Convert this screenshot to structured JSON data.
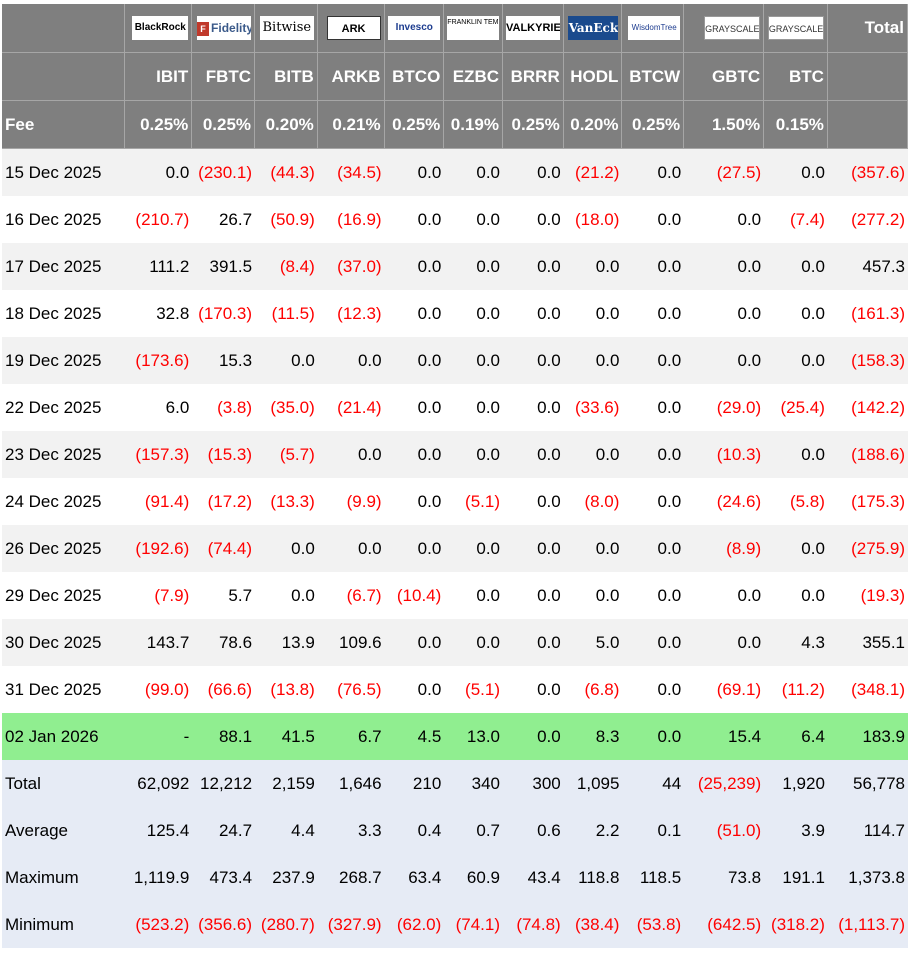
{
  "header": {
    "total_label": "Total",
    "ticker_label": "",
    "fee_label": "Fee",
    "funds": [
      {
        "logo_text": "BlackRock",
        "logo_icon": "blackrock-logo",
        "ticker": "IBIT",
        "fee": "0.25%"
      },
      {
        "logo_text": "Fidelity",
        "logo_icon": "fidelity-logo",
        "ticker": "FBTC",
        "fee": "0.25%"
      },
      {
        "logo_text": "Bitwise",
        "logo_icon": "bitwise-logo",
        "ticker": "BITB",
        "fee": "0.20%"
      },
      {
        "logo_text": "ARK",
        "logo_icon": "ark-invest-logo",
        "ticker": "ARKB",
        "fee": "0.21%"
      },
      {
        "logo_text": "Invesco",
        "logo_icon": "invesco-logo",
        "ticker": "BTCO",
        "fee": "0.25%"
      },
      {
        "logo_text": "FRANKLIN TEMPLETON",
        "logo_icon": "franklin-templeton-logo",
        "ticker": "EZBC",
        "fee": "0.19%"
      },
      {
        "logo_text": "VALKYRIE",
        "logo_icon": "valkyrie-logo",
        "ticker": "BRRR",
        "fee": "0.25%"
      },
      {
        "logo_text": "VanEck",
        "logo_icon": "vaneck-logo",
        "ticker": "HODL",
        "fee": "0.20%"
      },
      {
        "logo_text": "WisdomTree",
        "logo_icon": "wisdomtree-logo",
        "ticker": "BTCW",
        "fee": "0.25%"
      },
      {
        "logo_text": "GRAYSCALE",
        "logo_icon": "grayscale-logo",
        "ticker": "GBTC",
        "fee": "1.50%"
      },
      {
        "logo_text": "GRAYSCALE",
        "logo_icon": "grayscale-logo",
        "ticker": "BTC",
        "fee": "0.15%"
      }
    ]
  },
  "rows": [
    {
      "date": "15 Dec 2025",
      "values": [
        "0.0",
        "(230.1)",
        "(44.3)",
        "(34.5)",
        "0.0",
        "0.0",
        "0.0",
        "(21.2)",
        "0.0",
        "(27.5)",
        "0.0",
        "(357.6)"
      ]
    },
    {
      "date": "16 Dec 2025",
      "values": [
        "(210.7)",
        "26.7",
        "(50.9)",
        "(16.9)",
        "0.0",
        "0.0",
        "0.0",
        "(18.0)",
        "0.0",
        "0.0",
        "(7.4)",
        "(277.2)"
      ]
    },
    {
      "date": "17 Dec 2025",
      "values": [
        "111.2",
        "391.5",
        "(8.4)",
        "(37.0)",
        "0.0",
        "0.0",
        "0.0",
        "0.0",
        "0.0",
        "0.0",
        "0.0",
        "457.3"
      ]
    },
    {
      "date": "18 Dec 2025",
      "values": [
        "32.8",
        "(170.3)",
        "(11.5)",
        "(12.3)",
        "0.0",
        "0.0",
        "0.0",
        "0.0",
        "0.0",
        "0.0",
        "0.0",
        "(161.3)"
      ]
    },
    {
      "date": "19 Dec 2025",
      "values": [
        "(173.6)",
        "15.3",
        "0.0",
        "0.0",
        "0.0",
        "0.0",
        "0.0",
        "0.0",
        "0.0",
        "0.0",
        "0.0",
        "(158.3)"
      ]
    },
    {
      "date": "22 Dec 2025",
      "values": [
        "6.0",
        "(3.8)",
        "(35.0)",
        "(21.4)",
        "0.0",
        "0.0",
        "0.0",
        "(33.6)",
        "0.0",
        "(29.0)",
        "(25.4)",
        "(142.2)"
      ]
    },
    {
      "date": "23 Dec 2025",
      "values": [
        "(157.3)",
        "(15.3)",
        "(5.7)",
        "0.0",
        "0.0",
        "0.0",
        "0.0",
        "0.0",
        "0.0",
        "(10.3)",
        "0.0",
        "(188.6)"
      ]
    },
    {
      "date": "24 Dec 2025",
      "values": [
        "(91.4)",
        "(17.2)",
        "(13.3)",
        "(9.9)",
        "0.0",
        "(5.1)",
        "0.0",
        "(8.0)",
        "0.0",
        "(24.6)",
        "(5.8)",
        "(175.3)"
      ]
    },
    {
      "date": "26 Dec 2025",
      "values": [
        "(192.6)",
        "(74.4)",
        "0.0",
        "0.0",
        "0.0",
        "0.0",
        "0.0",
        "0.0",
        "0.0",
        "(8.9)",
        "0.0",
        "(275.9)"
      ]
    },
    {
      "date": "29 Dec 2025",
      "values": [
        "(7.9)",
        "5.7",
        "0.0",
        "(6.7)",
        "(10.4)",
        "0.0",
        "0.0",
        "0.0",
        "0.0",
        "0.0",
        "0.0",
        "(19.3)"
      ]
    },
    {
      "date": "30 Dec 2025",
      "values": [
        "143.7",
        "78.6",
        "13.9",
        "109.6",
        "0.0",
        "0.0",
        "0.0",
        "5.0",
        "0.0",
        "0.0",
        "4.3",
        "355.1"
      ]
    },
    {
      "date": "31 Dec 2025",
      "values": [
        "(99.0)",
        "(66.6)",
        "(13.8)",
        "(76.5)",
        "0.0",
        "(5.1)",
        "0.0",
        "(6.8)",
        "0.0",
        "(69.1)",
        "(11.2)",
        "(348.1)"
      ]
    },
    {
      "date": "02 Jan 2026",
      "highlight": true,
      "values": [
        "-",
        "88.1",
        "41.5",
        "6.7",
        "4.5",
        "13.0",
        "0.0",
        "8.3",
        "0.0",
        "15.4",
        "6.4",
        "183.9"
      ]
    }
  ],
  "summary": [
    {
      "label": "Total",
      "values": [
        "62,092",
        "12,212",
        "2,159",
        "1,646",
        "210",
        "340",
        "300",
        "1,095",
        "44",
        "(25,239)",
        "1,920",
        "56,778"
      ]
    },
    {
      "label": "Average",
      "values": [
        "125.4",
        "24.7",
        "4.4",
        "3.3",
        "0.4",
        "0.7",
        "0.6",
        "2.2",
        "0.1",
        "(51.0)",
        "3.9",
        "114.7"
      ]
    },
    {
      "label": "Maximum",
      "values": [
        "1,119.9",
        "473.4",
        "237.9",
        "268.7",
        "63.4",
        "60.9",
        "43.4",
        "118.8",
        "118.5",
        "73.8",
        "191.1",
        "1,373.8"
      ]
    },
    {
      "label": "Minimum",
      "values": [
        "(523.2)",
        "(356.6)",
        "(280.7)",
        "(327.9)",
        "(62.0)",
        "(74.1)",
        "(74.8)",
        "(38.4)",
        "(53.8)",
        "(642.5)",
        "(318.2)",
        "(1,113.7)"
      ]
    }
  ],
  "colors": {
    "header_bg": "#7f7f7f",
    "negative": "#ff0000",
    "highlight_row": "#90ee90",
    "summary_bg": "#e6ebf5",
    "stripe": "#f2f2f2"
  }
}
